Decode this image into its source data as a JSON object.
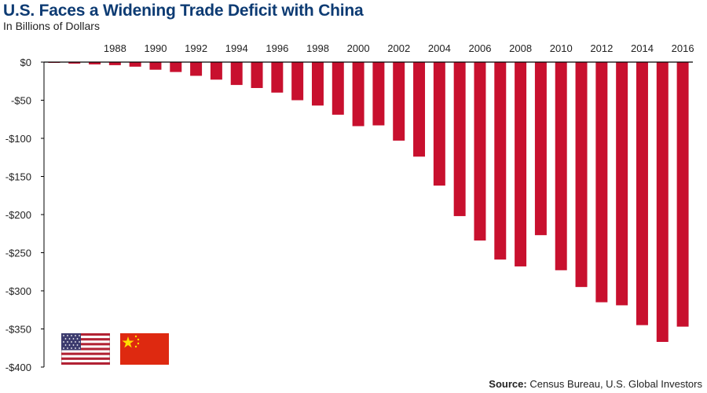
{
  "header": {
    "title": "U.S. Faces a Widening Trade Deficit with China",
    "subtitle": "In Billions of Dollars"
  },
  "source": {
    "label": "Source:",
    "text": "Census Bureau, U.S. Global Investors"
  },
  "flags": [
    {
      "name": "United States"
    },
    {
      "name": "China"
    }
  ],
  "colors": {
    "bar": "#c8102e",
    "axis": "#000000",
    "title": "#0d3b73"
  },
  "chart_data": {
    "type": "bar",
    "title": "U.S. Faces a Widening Trade Deficit with China",
    "subtitle": "In Billions of Dollars",
    "xlabel": "",
    "ylabel": "",
    "categories": [
      "1985",
      "1986",
      "1987",
      "1988",
      "1989",
      "1990",
      "1991",
      "1992",
      "1993",
      "1994",
      "1995",
      "1996",
      "1997",
      "1998",
      "1999",
      "2000",
      "2001",
      "2002",
      "2003",
      "2004",
      "2005",
      "2006",
      "2007",
      "2008",
      "2009",
      "2010",
      "2011",
      "2012",
      "2013",
      "2014",
      "2015",
      "2016"
    ],
    "x_tick_labels": [
      "1988",
      "1990",
      "1992",
      "1994",
      "1996",
      "1998",
      "2000",
      "2002",
      "2004",
      "2006",
      "2008",
      "2010",
      "2012",
      "2014",
      "2016"
    ],
    "values": [
      -1,
      -2,
      -3,
      -4,
      -6,
      -10,
      -13,
      -18,
      -23,
      -30,
      -34,
      -40,
      -50,
      -57,
      -69,
      -84,
      -83,
      -103,
      -124,
      -162,
      -202,
      -234,
      -259,
      -268,
      -227,
      -273,
      -295,
      -315,
      -319,
      -345,
      -367,
      -347
    ],
    "y_ticks": [
      0,
      -50,
      -100,
      -150,
      -200,
      -250,
      -300,
      -350,
      -400
    ],
    "y_tick_labels": [
      "$0",
      "-$50",
      "-$100",
      "-$150",
      "-$200",
      "-$250",
      "-$300",
      "-$350",
      "-$400"
    ],
    "ylim": [
      -400,
      0
    ],
    "grid": false,
    "legend": "none"
  }
}
